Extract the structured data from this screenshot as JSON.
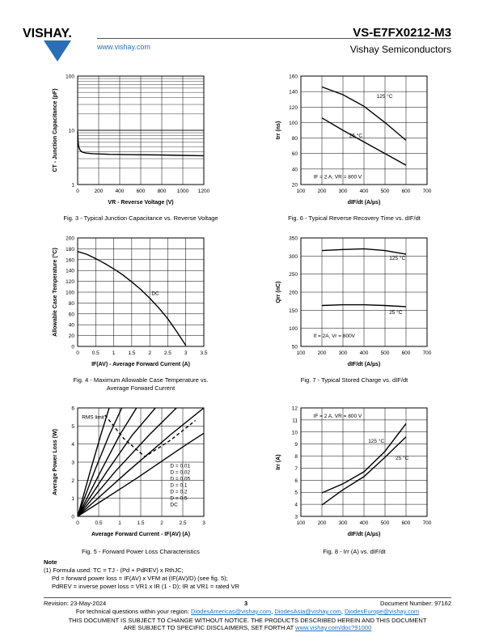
{
  "header": {
    "brand": "VISHAY.",
    "url": "www.vishay.com",
    "part_number": "VS-E7FX0212-M3",
    "company": "Vishay Semiconductors"
  },
  "figures": [
    {
      "id": "fig3",
      "caption": "Fig. 3 - Typical Junction Capacitance vs. Reverse Voltage"
    },
    {
      "id": "fig4",
      "caption_line1": "Fig. 4 - Maximum Allowable Case Temperature vs.",
      "caption_line2": "Average Forward Current"
    },
    {
      "id": "fig5",
      "caption": "Fig. 5 - Forward Power Loss Characteristics"
    },
    {
      "id": "fig6",
      "caption": "Fig. 6 - Typical Reverse Recovery Time vs. dIF/dt"
    },
    {
      "id": "fig7",
      "caption": "Fig. 7 - Typical Stored Charge vs. dIF/dt"
    },
    {
      "id": "fig8",
      "caption": "Fig. 8 - Irr (A) vs. dIF/dt"
    }
  ],
  "chart_data": [
    {
      "id": "fig3",
      "type": "line",
      "ylabel": "CT - Junction Capacitance (pF)",
      "xlabel": "VR - Reverse Voltage (V)",
      "yscale": "log",
      "ylim": [
        1,
        100
      ],
      "xlim": [
        0,
        1200
      ],
      "xticks": [
        0,
        200,
        400,
        600,
        800,
        1000,
        1200
      ],
      "yticks": [
        1,
        10,
        100
      ],
      "series": [
        {
          "x": [
            0,
            5,
            10,
            20,
            40,
            80,
            150,
            300,
            500,
            800,
            1000,
            1200
          ],
          "y": [
            9.5,
            6,
            5,
            4.4,
            4,
            3.8,
            3.7,
            3.6,
            3.55,
            3.5,
            3.45,
            3.4
          ]
        }
      ]
    },
    {
      "id": "fig4",
      "type": "line",
      "ylabel": "Allowable Case Temperature (°C)",
      "xlabel": "IF(AV) - Average Forward Current (A)",
      "xlim": [
        0,
        3.5
      ],
      "ylim": [
        0,
        200
      ],
      "xticks": [
        0,
        0.5,
        1,
        1.5,
        2,
        2.5,
        3,
        3.5
      ],
      "yticks": [
        0,
        20,
        40,
        60,
        80,
        100,
        120,
        140,
        160,
        180,
        200
      ],
      "annotations": [
        "DC"
      ],
      "series": [
        {
          "name": "DC",
          "x": [
            0,
            0.25,
            0.5,
            0.75,
            1,
            1.25,
            1.5,
            1.75,
            2,
            2.25,
            2.5,
            2.75,
            3
          ],
          "y": [
            175,
            170,
            162,
            153,
            143,
            132,
            119,
            105,
            89,
            71,
            51,
            27,
            2
          ]
        }
      ]
    },
    {
      "id": "fig5",
      "type": "line",
      "ylabel": "Average Power Loss (W)",
      "xlabel": "Average Forward Current - IF(AV) (A)",
      "xlim": [
        0,
        3
      ],
      "ylim": [
        0,
        6
      ],
      "xticks": [
        0,
        0.5,
        1,
        1.5,
        2,
        2.5,
        3
      ],
      "yticks": [
        0,
        1,
        2,
        3,
        4,
        5,
        6
      ],
      "annotations": [
        "RMS limit"
      ],
      "series": [
        {
          "name": "D = 0.01",
          "x": [
            0,
            0.3,
            0.55,
            0.75
          ],
          "y": [
            0,
            2.5,
            4.5,
            6
          ]
        },
        {
          "name": "D = 0.02",
          "x": [
            0,
            0.4,
            0.75,
            1.05
          ],
          "y": [
            0,
            2.5,
            4.5,
            6
          ]
        },
        {
          "name": "D = 0.05",
          "x": [
            0,
            0.55,
            1.0,
            1.4
          ],
          "y": [
            0,
            2.5,
            4.5,
            6
          ]
        },
        {
          "name": "D = 0.1",
          "x": [
            0,
            0.7,
            1.3,
            1.85
          ],
          "y": [
            0,
            2.5,
            4.5,
            6
          ]
        },
        {
          "name": "D = 0.2",
          "x": [
            0,
            0.9,
            1.7,
            2.35
          ],
          "y": [
            0,
            2.5,
            4.5,
            6
          ]
        },
        {
          "name": "D = 0.5",
          "x": [
            0,
            1.2,
            2.2,
            3.0
          ],
          "y": [
            0,
            2.5,
            4.5,
            6
          ]
        },
        {
          "name": "DC",
          "x": [
            0,
            1.4,
            2.6,
            3.0
          ],
          "y": [
            0,
            2.1,
            4.0,
            4.6
          ]
        },
        {
          "name": "RMS limit",
          "x": [
            0.65,
            1.1,
            1.6,
            2.2,
            2.8
          ],
          "y": [
            5.6,
            4.3,
            3.3,
            4.2,
            5.3
          ],
          "dashed": true
        }
      ]
    },
    {
      "id": "fig6",
      "type": "line",
      "ylabel": "trr (ns)",
      "xlabel": "dIF/dt (A/µs)",
      "xlim": [
        100,
        700
      ],
      "ylim": [
        20,
        160
      ],
      "xticks": [
        100,
        200,
        300,
        400,
        500,
        600,
        700
      ],
      "yticks": [
        20,
        40,
        60,
        80,
        100,
        120,
        140,
        160
      ],
      "annotations": [
        "IF = 2 A, VR = 800 V"
      ],
      "series": [
        {
          "name": "125 °C",
          "x": [
            200,
            300,
            400,
            500,
            600
          ],
          "y": [
            146,
            136,
            121,
            100,
            77
          ]
        },
        {
          "name": "25 °C",
          "x": [
            200,
            300,
            400,
            500,
            600
          ],
          "y": [
            106,
            90,
            75,
            60,
            45
          ]
        }
      ]
    },
    {
      "id": "fig7",
      "type": "line",
      "ylabel": "Qrr (nC)",
      "xlabel": "dIF/dt (A/µs)",
      "xlim": [
        100,
        700
      ],
      "ylim": [
        50,
        350
      ],
      "xticks": [
        100,
        200,
        300,
        400,
        500,
        600,
        700
      ],
      "yticks": [
        50,
        100,
        150,
        200,
        250,
        300,
        350
      ],
      "annotations": [
        "If = 2A, Vr = 800V"
      ],
      "series": [
        {
          "name": "125 °C",
          "x": [
            200,
            300,
            400,
            500,
            600
          ],
          "y": [
            315,
            318,
            320,
            315,
            305
          ]
        },
        {
          "name": "25 °C",
          "x": [
            200,
            300,
            400,
            500,
            600
          ],
          "y": [
            163,
            165,
            165,
            163,
            160
          ]
        }
      ]
    },
    {
      "id": "fig8",
      "type": "line",
      "ylabel": "Irr (A)",
      "xlabel": "dIF/dt (A/µs)",
      "xlim": [
        100,
        700
      ],
      "ylim": [
        3,
        12
      ],
      "xticks": [
        100,
        200,
        300,
        400,
        500,
        600,
        700
      ],
      "yticks": [
        3,
        4,
        5,
        6,
        7,
        8,
        9,
        10,
        11,
        12
      ],
      "annotations": [
        "IF = 2 A, VR = 800 V"
      ],
      "series": [
        {
          "name": "125 °C",
          "x": [
            200,
            300,
            400,
            500,
            600
          ],
          "y": [
            4.95,
            5.7,
            6.7,
            8.4,
            10.7
          ]
        },
        {
          "name": "25 °C",
          "x": [
            200,
            300,
            400,
            500,
            600
          ],
          "y": [
            3.95,
            5.2,
            6.3,
            7.9,
            9.6
          ]
        }
      ]
    }
  ],
  "note": {
    "title": "Note",
    "line1": "(1)  Formula used: TC = TJ - (Pd + PdREV) x RthJC;",
    "line2": "Pd = forward power loss = IF(AV) x VFM at (IF(AV)/D) (see fig. 5);",
    "line3": "PdREV = inverse power loss = VR1 x IR (1 - D); IR at VR1 = rated VR"
  },
  "footer": {
    "revision": "Revision: 23-May-2024",
    "page": "3",
    "doc_number": "Document Number: 97162",
    "contact_prefix": "For technical questions within your region:",
    "email1": "DiodesAmericas@vishay.com",
    "email2": "DiodesAsia@vishay.com",
    "email3": "DiodesEurope@vishay.com",
    "disclaimer1": "THIS DOCUMENT IS SUBJECT TO CHANGE WITHOUT NOTICE. THE PRODUCTS DESCRIBED HEREIN AND THIS DOCUMENT",
    "disclaimer2_prefix": "ARE SUBJECT TO SPECIFIC DISCLAIMERS, SET FORTH AT",
    "disclaimer_link": "www.vishay.com/doc?91000"
  }
}
